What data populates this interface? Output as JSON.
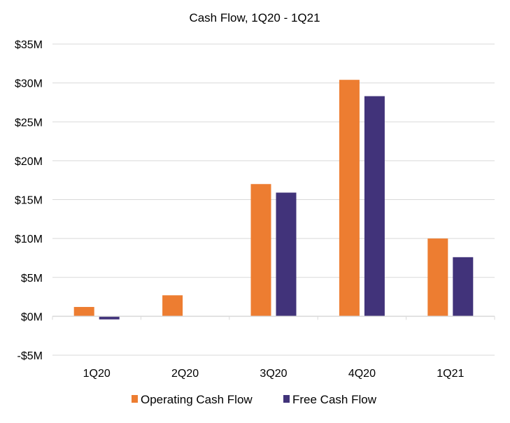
{
  "chart_data": {
    "type": "bar",
    "title": "Cash Flow, 1Q20 - 1Q21",
    "xlabel": "",
    "ylabel": "",
    "categories": [
      "1Q20",
      "2Q20",
      "3Q20",
      "4Q20",
      "1Q21"
    ],
    "series": [
      {
        "name": "Operating Cash Flow",
        "color": "#ED7D31",
        "values": [
          1.2,
          2.7,
          17.0,
          30.4,
          10.0
        ]
      },
      {
        "name": "Free Cash Flow",
        "color": "#41337A",
        "values": [
          -0.4,
          0.0,
          15.9,
          28.3,
          7.6
        ]
      }
    ],
    "ylim": [
      -5,
      35
    ],
    "yticks": [
      -5,
      0,
      5,
      10,
      15,
      20,
      25,
      30,
      35
    ],
    "ytick_labels": [
      "-$5M",
      "$0M",
      "$5M",
      "$10M",
      "$15M",
      "$20M",
      "$25M",
      "$30M",
      "$35M"
    ],
    "grid": true,
    "legend": "bottom"
  }
}
